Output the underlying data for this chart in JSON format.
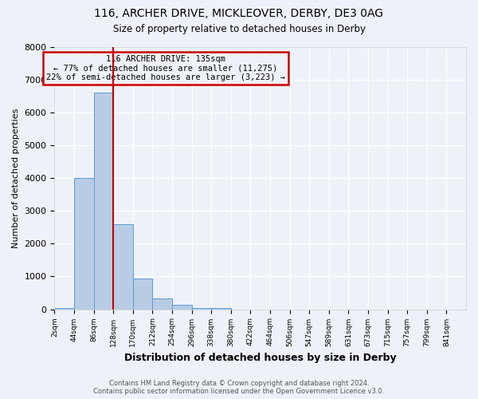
{
  "title": "116, ARCHER DRIVE, MICKLEOVER, DERBY, DE3 0AG",
  "subtitle": "Size of property relative to detached houses in Derby",
  "xlabel": "Distribution of detached houses by size in Derby",
  "ylabel": "Number of detached properties",
  "bin_labels": [
    "2sqm",
    "44sqm",
    "86sqm",
    "128sqm",
    "170sqm",
    "212sqm",
    "254sqm",
    "296sqm",
    "338sqm",
    "380sqm",
    "422sqm",
    "464sqm",
    "506sqm",
    "547sqm",
    "589sqm",
    "631sqm",
    "673sqm",
    "715sqm",
    "757sqm",
    "799sqm",
    "841sqm"
  ],
  "bar_values": [
    50,
    4000,
    6600,
    2600,
    950,
    320,
    130,
    50,
    50,
    0,
    0,
    0,
    0,
    0,
    0,
    0,
    0,
    0,
    0,
    0
  ],
  "bar_color": "#b8cce4",
  "bar_edge_color": "#5b9bd5",
  "property_line_color": "#cc0000",
  "property_line_bin_index": 3,
  "annotation_title": "116 ARCHER DRIVE: 135sqm",
  "annotation_line1": "← 77% of detached houses are smaller (11,275)",
  "annotation_line2": "22% of semi-detached houses are larger (3,223) →",
  "annotation_box_color": "#cc0000",
  "ylim": [
    0,
    8000
  ],
  "yticks": [
    0,
    1000,
    2000,
    3000,
    4000,
    5000,
    6000,
    7000,
    8000
  ],
  "footer_line1": "Contains HM Land Registry data © Crown copyright and database right 2024.",
  "footer_line2": "Contains public sector information licensed under the Open Government Licence v3.0.",
  "background_color": "#eef2f8"
}
